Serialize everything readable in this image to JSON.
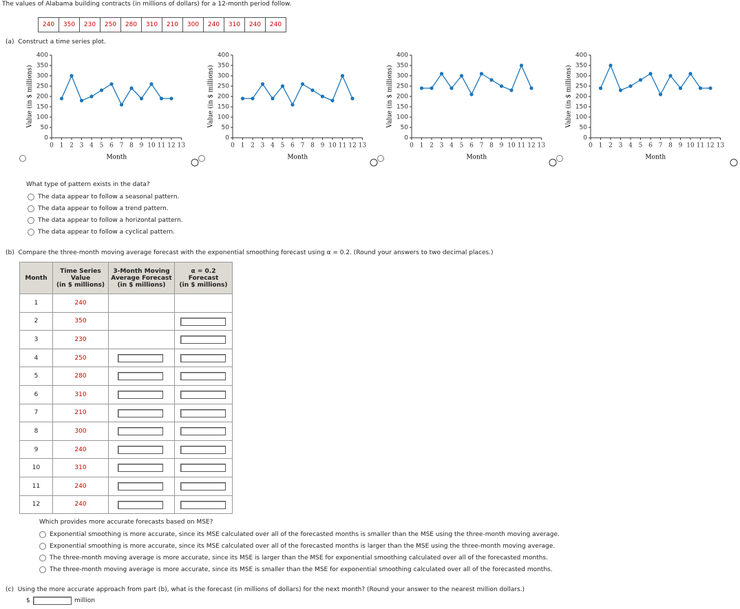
{
  "intro": "The values of Alabama building contracts (in millions of dollars) for a 12-month period follow.",
  "data_row": [
    240,
    350,
    230,
    250,
    280,
    310,
    210,
    300,
    240,
    310,
    240,
    240
  ],
  "part_a": {
    "label": "(a)",
    "text": "Construct a time series plot."
  },
  "chart_data": [
    {
      "type": "line",
      "x": [
        1,
        2,
        3,
        4,
        5,
        6,
        7,
        8,
        9,
        10,
        11,
        12
      ],
      "values": [
        190,
        300,
        180,
        200,
        230,
        260,
        160,
        240,
        190,
        260,
        190,
        190
      ],
      "color": "#1b75bb",
      "xlim": [
        0,
        13
      ],
      "ylim": [
        0,
        400
      ],
      "xticks": [
        0,
        1,
        2,
        3,
        4,
        5,
        6,
        7,
        8,
        9,
        10,
        11,
        12,
        13
      ],
      "yticks": [
        0,
        50,
        100,
        150,
        200,
        250,
        300,
        350,
        400
      ],
      "x_label": "Month",
      "y_label": "Value (in $ millions)"
    },
    {
      "type": "line",
      "x": [
        1,
        2,
        3,
        4,
        5,
        6,
        7,
        8,
        9,
        10,
        11,
        12
      ],
      "values": [
        190,
        190,
        260,
        190,
        250,
        160,
        260,
        230,
        200,
        180,
        300,
        190
      ],
      "color": "#1b75bb",
      "xlim": [
        0,
        13
      ],
      "ylim": [
        0,
        400
      ],
      "xticks": [
        0,
        1,
        2,
        3,
        4,
        5,
        6,
        7,
        8,
        9,
        10,
        11,
        12,
        13
      ],
      "yticks": [
        0,
        50,
        100,
        150,
        200,
        250,
        300,
        350,
        400
      ],
      "x_label": "Month",
      "y_label": "Value (in $ millions)"
    },
    {
      "type": "line",
      "x": [
        1,
        2,
        3,
        4,
        5,
        6,
        7,
        8,
        9,
        10,
        11,
        12
      ],
      "values": [
        240,
        240,
        310,
        240,
        300,
        210,
        310,
        280,
        250,
        230,
        350,
        240
      ],
      "color": "#1b75bb",
      "xlim": [
        0,
        13
      ],
      "ylim": [
        0,
        400
      ],
      "xticks": [
        0,
        1,
        2,
        3,
        4,
        5,
        6,
        7,
        8,
        9,
        10,
        11,
        12,
        13
      ],
      "yticks": [
        0,
        50,
        100,
        150,
        200,
        250,
        300,
        350,
        400
      ],
      "x_label": "Month",
      "y_label": "Value (in $ millions)"
    },
    {
      "type": "line",
      "x": [
        1,
        2,
        3,
        4,
        5,
        6,
        7,
        8,
        9,
        10,
        11,
        12
      ],
      "values": [
        240,
        350,
        230,
        250,
        280,
        310,
        210,
        300,
        240,
        310,
        240,
        240
      ],
      "color": "#1b75bb",
      "xlim": [
        0,
        13
      ],
      "ylim": [
        0,
        400
      ],
      "xticks": [
        0,
        1,
        2,
        3,
        4,
        5,
        6,
        7,
        8,
        9,
        10,
        11,
        12,
        13
      ],
      "yticks": [
        0,
        50,
        100,
        150,
        200,
        250,
        300,
        350,
        400
      ],
      "x_label": "Month",
      "y_label": "Value (in $ millions)"
    }
  ],
  "pattern_question": {
    "text": "What type of pattern exists in the data?",
    "options": [
      "The data appear to follow a seasonal pattern.",
      "The data appear to follow a trend pattern.",
      "The data appear to follow a horizontal pattern.",
      "The data appear to follow a cyclical pattern."
    ]
  },
  "part_b": {
    "label": "(b)",
    "text": "Compare the three-month moving average forecast with the exponential smoothing forecast using α = 0.2. (Round your answers to two decimal places.)"
  },
  "table": {
    "headers": [
      [
        "Month"
      ],
      [
        "Time Series",
        "Value",
        "(in $ millions)"
      ],
      [
        "3-Month Moving",
        "Average Forecast",
        "(in $ millions)"
      ],
      [
        "α = 0.2",
        "Forecast",
        "(in $ millions)"
      ]
    ],
    "rows": [
      [
        1,
        240
      ],
      [
        2,
        350
      ],
      [
        3,
        230
      ],
      [
        4,
        250
      ],
      [
        5,
        280
      ],
      [
        6,
        310
      ],
      [
        7,
        210
      ],
      [
        8,
        300
      ],
      [
        9,
        240
      ],
      [
        10,
        310
      ],
      [
        11,
        240
      ],
      [
        12,
        240
      ]
    ]
  },
  "mse_question": {
    "text": "Which provides more accurate forecasts based on MSE?",
    "options": [
      "Exponential smoothing is more accurate, since its MSE calculated over all of the forecasted months is smaller than the MSE using the three-month moving average.",
      "Exponential smoothing is more accurate, since its MSE calculated over all of the forecasted months is larger than the MSE using the three-month moving average.",
      "The three-month moving average is more accurate, since its MSE is larger than the MSE for exponential smoothing calculated over all of the forecasted months.",
      "The three-month moving average is more accurate, since its MSE is smaller than the MSE for exponential smoothing calculated over all of the forecasted months."
    ]
  },
  "part_c": {
    "label": "(c)",
    "text": "Using the more accurate approach from part (b), what is the forecast (in millions of dollars) for the next month? (Round your answer to the nearest million dollars.)",
    "prefix": "$",
    "unit": "million"
  }
}
